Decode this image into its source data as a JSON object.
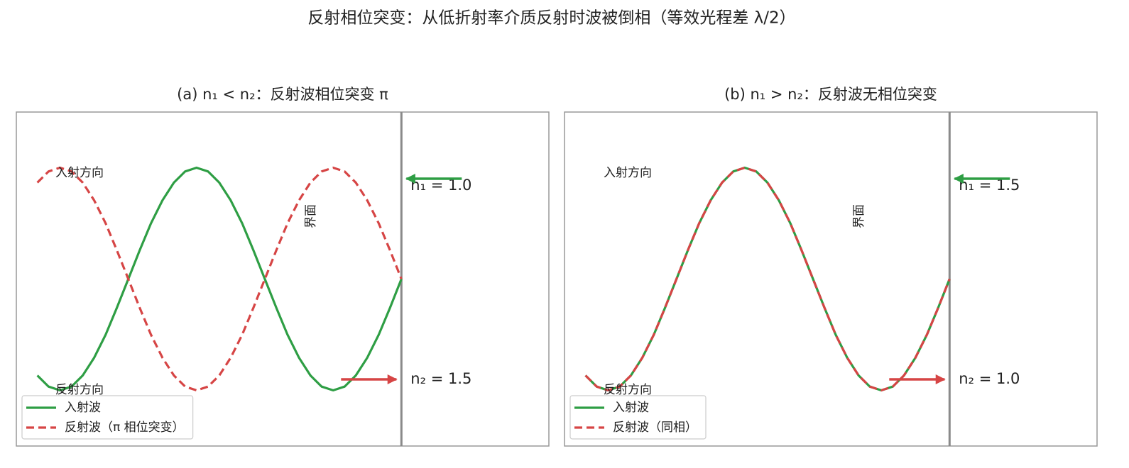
{
  "title": "反射相位突变：从低折射率介质反射时波被倒相（等效光程差 λ/2）",
  "chart_data": [
    {
      "type": "line",
      "title": "(a) n₁ < n₂：反射波相位突变 π",
      "xlim": [
        -1.41,
        0.54
      ],
      "ylim": [
        -1.5,
        1.5
      ],
      "legend": "lower left",
      "x": [
        -1.333,
        -1.292,
        -1.25,
        -1.208,
        -1.167,
        -1.125,
        -1.083,
        -1.042,
        -1,
        -0.958,
        -0.917,
        -0.875,
        -0.833,
        -0.792,
        -0.75,
        -0.708,
        -0.667,
        -0.625,
        -0.583,
        -0.542,
        -0.5,
        -0.458,
        -0.417,
        -0.375,
        -0.333,
        -0.292,
        -0.25,
        -0.208,
        -0.167,
        -0.125,
        -0.083,
        -0.042,
        0
      ],
      "series": [
        {
          "name": "入射波",
          "color": "#2e9e44",
          "style": "solid",
          "values": [
            -0.866,
            -0.966,
            -1,
            -0.966,
            -0.866,
            -0.707,
            -0.5,
            -0.259,
            0,
            0.259,
            0.5,
            0.707,
            0.866,
            0.966,
            1,
            0.966,
            0.866,
            0.707,
            0.5,
            0.259,
            0,
            -0.259,
            -0.5,
            -0.707,
            -0.866,
            -0.966,
            -1,
            -0.966,
            -0.866,
            -0.707,
            -0.5,
            -0.259,
            0
          ]
        },
        {
          "name": "反射波（π 相位突变）",
          "color": "#d64545",
          "style": "dashed",
          "values": [
            0.866,
            0.966,
            1,
            0.966,
            0.866,
            0.707,
            0.5,
            0.259,
            0,
            -0.259,
            -0.5,
            -0.707,
            -0.866,
            -0.966,
            -1,
            -0.966,
            -0.866,
            -0.707,
            -0.5,
            -0.259,
            0,
            0.259,
            0.5,
            0.707,
            0.866,
            0.966,
            1,
            0.966,
            0.866,
            0.707,
            0.5,
            0.259,
            0
          ]
        }
      ],
      "annotations": {
        "incident_label": "入射方向",
        "reflected_label": "反射方向",
        "interface_label": "界面",
        "n1_label": "n₁ = 1.0",
        "n2_label": "n₂ = 1.5"
      }
    },
    {
      "type": "line",
      "title": "(b) n₁ > n₂：反射波无相位突变",
      "xlim": [
        -1.41,
        0.54
      ],
      "ylim": [
        -1.5,
        1.5
      ],
      "legend": "lower left",
      "x": [
        -1.333,
        -1.292,
        -1.25,
        -1.208,
        -1.167,
        -1.125,
        -1.083,
        -1.042,
        -1,
        -0.958,
        -0.917,
        -0.875,
        -0.833,
        -0.792,
        -0.75,
        -0.708,
        -0.667,
        -0.625,
        -0.583,
        -0.542,
        -0.5,
        -0.458,
        -0.417,
        -0.375,
        -0.333,
        -0.292,
        -0.25,
        -0.208,
        -0.167,
        -0.125,
        -0.083,
        -0.042,
        0
      ],
      "series": [
        {
          "name": "入射波",
          "color": "#2e9e44",
          "style": "solid",
          "values": [
            -0.866,
            -0.966,
            -1,
            -0.966,
            -0.866,
            -0.707,
            -0.5,
            -0.259,
            0,
            0.259,
            0.5,
            0.707,
            0.866,
            0.966,
            1,
            0.966,
            0.866,
            0.707,
            0.5,
            0.259,
            0,
            -0.259,
            -0.5,
            -0.707,
            -0.866,
            -0.966,
            -1,
            -0.966,
            -0.866,
            -0.707,
            -0.5,
            -0.259,
            0
          ]
        },
        {
          "name": "反射波（同相）",
          "color": "#d64545",
          "style": "dashed",
          "values": [
            -0.866,
            -0.966,
            -1,
            -0.966,
            -0.866,
            -0.707,
            -0.5,
            -0.259,
            0,
            0.259,
            0.5,
            0.707,
            0.866,
            0.966,
            1,
            0.966,
            0.866,
            0.707,
            0.5,
            0.259,
            0,
            -0.259,
            -0.5,
            -0.707,
            -0.866,
            -0.966,
            -1,
            -0.966,
            -0.866,
            -0.707,
            -0.5,
            -0.259,
            0
          ]
        }
      ],
      "annotations": {
        "incident_label": "入射方向",
        "reflected_label": "反射方向",
        "interface_label": "界面",
        "n1_label": "n₁ = 1.5",
        "n2_label": "n₂ = 1.0"
      }
    }
  ]
}
